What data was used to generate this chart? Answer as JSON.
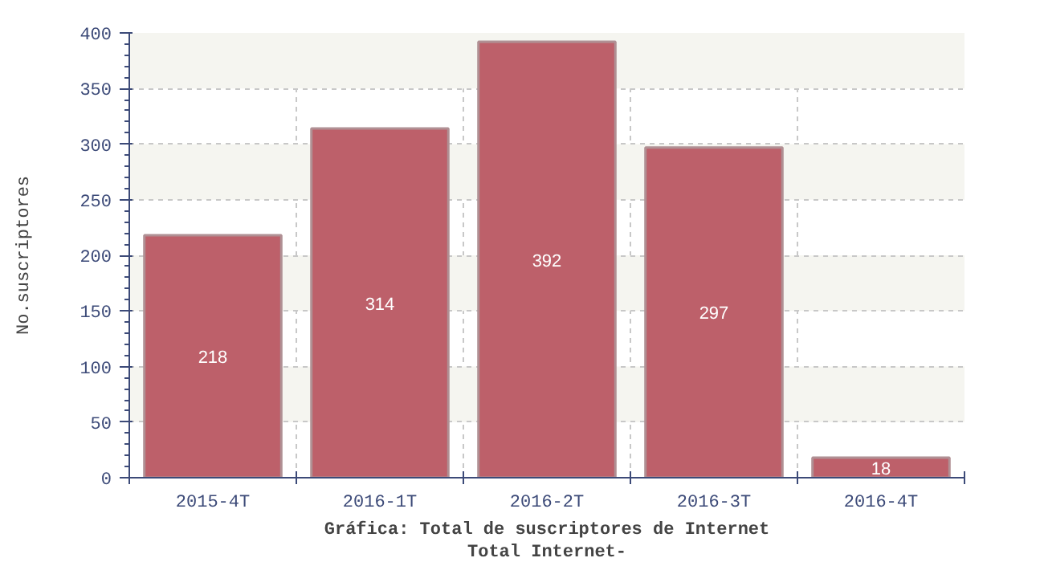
{
  "chart_data": {
    "type": "bar",
    "title": "Gráfica: Total de suscriptores de Internet",
    "subtitle": "Total Internet-",
    "ylabel": "No.suscriptores",
    "categories": [
      "2015-4T",
      "2016-1T",
      "2016-2T",
      "2016-3T",
      "2016-4T"
    ],
    "values": [
      218,
      314,
      392,
      297,
      18
    ],
    "color": "#bd606a",
    "ylim": [
      0,
      400
    ],
    "yticks": [
      0,
      50,
      100,
      150,
      200,
      250,
      300,
      350,
      400
    ],
    "grid": true,
    "data_labels": true
  }
}
